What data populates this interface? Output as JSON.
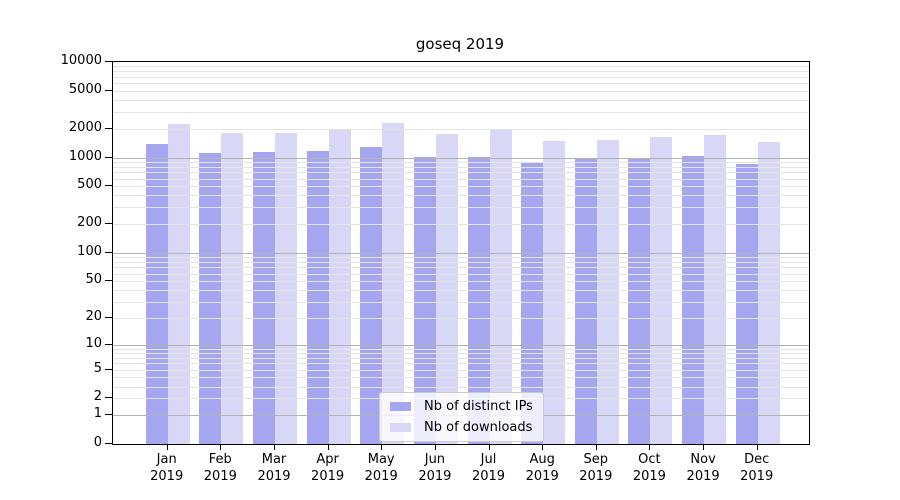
{
  "title": "goseq 2019",
  "chart_data": {
    "type": "bar",
    "title": "goseq 2019",
    "categories": [
      "Jan",
      "Feb",
      "Mar",
      "Apr",
      "May",
      "Jun",
      "Jul",
      "Aug",
      "Sep",
      "Oct",
      "Nov",
      "Dec"
    ],
    "category_year": "2019",
    "series": [
      {
        "name": "Nb of distinct IPs",
        "color": "#a6a6f0",
        "values": [
          1400,
          1120,
          1150,
          1165,
          1300,
          1015,
          1015,
          890,
          955,
          980,
          1030,
          865
        ]
      },
      {
        "name": "Nb of downloads",
        "color": "#d8d8f6",
        "values": [
          2250,
          1820,
          1820,
          1960,
          2290,
          1760,
          1930,
          1480,
          1520,
          1650,
          1715,
          1455
        ]
      }
    ],
    "y_scale": "log1p",
    "ylim": [
      0,
      10000
    ],
    "y_ticks": [
      0,
      1,
      2,
      5,
      10,
      20,
      50,
      100,
      200,
      500,
      1000,
      2000,
      5000,
      10000
    ],
    "y_major_grid_ticks": [
      1,
      10,
      100,
      1000
    ],
    "grid": true,
    "grid_over_bars": true,
    "legend_position": "lower center"
  },
  "colors": {
    "axis": "#000000",
    "major_grid": "#b3b3b3",
    "minor_grid": "#e4e4e4",
    "background": "#ffffff",
    "legend_border": "#cccccc"
  }
}
